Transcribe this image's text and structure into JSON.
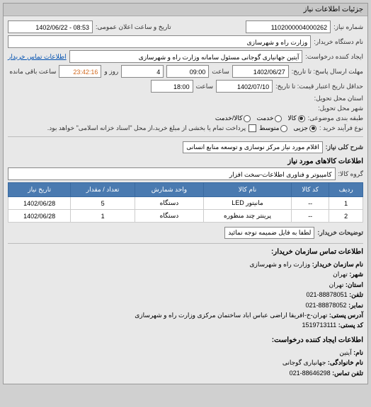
{
  "panel": {
    "title": "جزئیات اطلاعات نیاز"
  },
  "fields": {
    "request_no_label": "شماره نیاز:",
    "request_no": "1102000004000262",
    "announce_label": "تاریخ و ساعت اعلان عمومی:",
    "announce_value": "08:53 - 1402/06/22",
    "buyer_label": "نام دستگاه خریدار:",
    "buyer_value": "وزارت راه و شهرسازی",
    "creator_label": "ایجاد کننده درخواست:",
    "creator_value": "آیتین جهانیاری گوجانی مسئول سامانه وزارت راه و شهرسازی",
    "buyer_contact_link": "اطلاعات تماس خریدار",
    "response_deadline_label": "مهلت ارسال پاسخ: تا تاریخ:",
    "response_date": "1402/06/27",
    "response_time_label": "ساعت",
    "response_time": "09:00",
    "remain_days": "4",
    "remain_days_label": "روز و",
    "remain_time": "23:42:16",
    "remain_suffix": "ساعت باقی مانده",
    "validity_label": "حداقل تاریخ اعتبار قیمت: تا تاریخ:",
    "validity_date": "1402/07/10",
    "validity_time_label": "ساعت",
    "validity_time": "18:00",
    "province_label": "استان محل تحویل:",
    "city_label": "شهر محل تحویل:",
    "category_label": "طبقه بندی موضوعی:",
    "category_options": {
      "goods": "کالا",
      "service": "خدمت",
      "both": "کالا/خدمت"
    },
    "process_label": "نوع فرآیند خرید :",
    "process_options": {
      "partial": "جزیی",
      "medium": "متوسط"
    },
    "process_note": "پرداخت تمام یا بخشی از مبلغ خرید،از محل \"اسناد خزانه اسلامی\" خواهد بود.",
    "subject_label": "شرح کلی نیاز:",
    "subject_value": "اقلام مورد نیاز مرکز نوسازی و توسعه منابع انسانی",
    "goods_section": "اطلاعات کالاهای مورد نیاز",
    "goods_group_label": "گروه کالا:",
    "goods_group_value": "کامپیوتر و فناوری اطلاعات-سخت افزار",
    "buyer_notes_label": "توضیحات خریدار:",
    "buyer_notes_value": "لطفا به فایل ضمیمه توجه نمائید",
    "contact_section": "اطلاعات تماس سازمان خریدار:",
    "org_name_label": "نام سازمان خریدار:",
    "org_name": "وزارت راه و شهرسازی",
    "city_l": "شهر:",
    "city_v": "تهران",
    "province_l": "استان:",
    "province_v": "تهران",
    "phone_l": "تلفن:",
    "phone_v": "88878051-021",
    "fax_l": "نمابر:",
    "fax_v": "88878052-021",
    "address_l": "آدرس پستی:",
    "address_v": "تهران-خ-افریقا اراضی عباس اباد ساختمان مرکزی وزارت راه و شهرسازی",
    "postal_l": "کد پستی:",
    "postal_v": "1519713111",
    "req_creator_section": "اطلاعات ایجاد کننده درخواست:",
    "fname_l": "نام:",
    "fname_v": "آیتین",
    "lname_l": "نام خانوادگی:",
    "lname_v": "جهانیاری گوجانی",
    "cphone_l": "تلفن تماس:",
    "cphone_v": "88646298-021"
  },
  "table": {
    "headers": [
      "ردیف",
      "کد کالا",
      "نام کالا",
      "واحد شمارش",
      "تعداد / مقدار",
      "تاریخ نیاز"
    ],
    "rows": [
      [
        "1",
        "--",
        "مانیتور LED",
        "دستگاه",
        "5",
        "1402/06/28"
      ],
      [
        "2",
        "--",
        "پرینتر چند منظوره",
        "دستگاه",
        "1",
        "1402/06/28"
      ]
    ]
  }
}
